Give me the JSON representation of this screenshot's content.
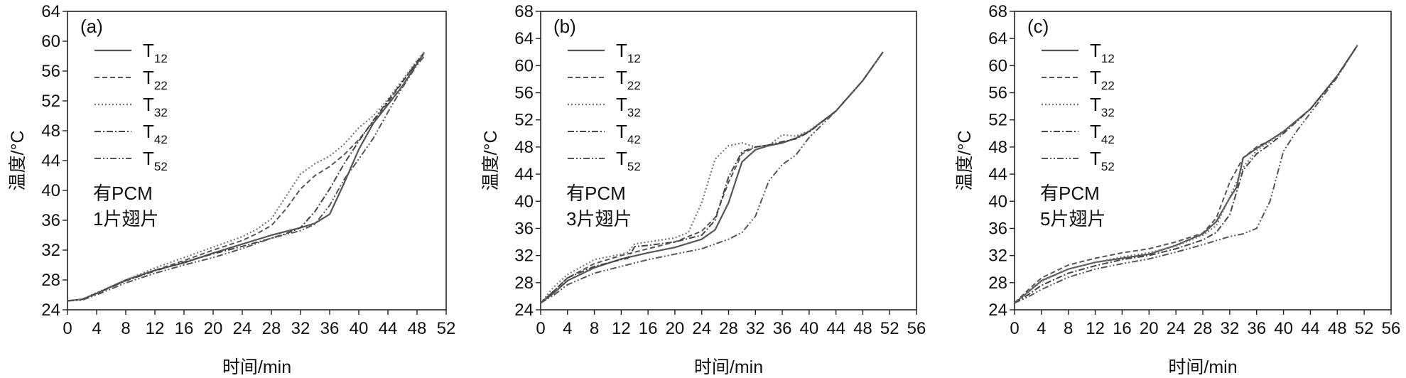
{
  "chart_data": [
    {
      "type": "line",
      "panel": "(a)",
      "xlabel": "时间/min",
      "ylabel": "温度/°C",
      "xlim": [
        0,
        52
      ],
      "ylim": [
        24,
        64
      ],
      "xticks": [
        0,
        4,
        8,
        12,
        16,
        20,
        24,
        28,
        32,
        36,
        40,
        44,
        48,
        52
      ],
      "yticks": [
        24,
        28,
        32,
        36,
        40,
        44,
        48,
        52,
        56,
        60,
        64
      ],
      "annotation": [
        "有PCM",
        "1片翅片"
      ],
      "series": [
        {
          "name": "T12",
          "label": "T",
          "sub": "12",
          "style": "solid",
          "x": [
            0,
            2,
            4,
            8,
            12,
            16,
            20,
            24,
            28,
            32,
            34,
            36,
            38,
            40,
            42,
            44,
            46,
            48,
            49
          ],
          "y": [
            25.2,
            25.4,
            26.2,
            28.0,
            29.3,
            30.3,
            31.6,
            32.8,
            34.0,
            35.0,
            35.6,
            36.8,
            41.0,
            45.5,
            49.0,
            51.5,
            54.0,
            57.0,
            58.5
          ]
        },
        {
          "name": "T22",
          "label": "T",
          "sub": "22",
          "style": "dashed",
          "x": [
            0,
            2,
            4,
            8,
            12,
            16,
            20,
            24,
            26,
            28,
            30,
            32,
            34,
            36,
            38,
            40,
            42,
            44,
            46,
            48,
            49
          ],
          "y": [
            25.2,
            25.4,
            26.2,
            27.9,
            29.3,
            30.6,
            32.0,
            33.3,
            34.2,
            35.3,
            37.5,
            40.2,
            42.0,
            43.2,
            44.8,
            46.8,
            49.2,
            51.8,
            54.5,
            57.3,
            58.5
          ]
        },
        {
          "name": "T32",
          "label": "T",
          "sub": "32",
          "style": "dotted",
          "x": [
            0,
            2,
            4,
            8,
            12,
            16,
            20,
            24,
            26,
            28,
            30,
            32,
            34,
            36,
            38,
            40,
            42,
            44,
            46,
            48,
            49
          ],
          "y": [
            25.2,
            25.4,
            26.3,
            28.0,
            29.6,
            31.0,
            32.4,
            33.8,
            34.8,
            36.2,
            39.2,
            42.2,
            43.6,
            44.6,
            46.2,
            48.4,
            50.0,
            52.2,
            54.8,
            57.4,
            58.6
          ]
        },
        {
          "name": "T42",
          "label": "T",
          "sub": "42",
          "style": "dashdot",
          "x": [
            0,
            2,
            4,
            8,
            12,
            16,
            20,
            24,
            28,
            30,
            32,
            34,
            36,
            38,
            40,
            42,
            44,
            46,
            48,
            49
          ],
          "y": [
            25.2,
            25.4,
            26.2,
            27.9,
            29.2,
            30.4,
            31.5,
            32.5,
            33.6,
            34.2,
            35.0,
            37.2,
            40.2,
            43.6,
            46.6,
            49.4,
            52.0,
            54.6,
            57.2,
            58.3
          ]
        },
        {
          "name": "T52",
          "label": "T",
          "sub": "52",
          "style": "dashdotdot",
          "x": [
            0,
            2,
            4,
            8,
            12,
            16,
            20,
            24,
            28,
            32,
            34,
            36,
            38,
            40,
            42,
            44,
            46,
            48,
            49
          ],
          "y": [
            25.2,
            25.3,
            26.0,
            27.6,
            28.9,
            30.0,
            31.0,
            32.2,
            33.6,
            34.6,
            35.5,
            38.0,
            41.5,
            44.2,
            47.0,
            50.5,
            53.8,
            56.8,
            58.0
          ]
        }
      ]
    },
    {
      "type": "line",
      "panel": "(b)",
      "xlabel": "时间/min",
      "ylabel": "温度/°C",
      "xlim": [
        0,
        56
      ],
      "ylim": [
        24,
        68
      ],
      "xticks": [
        0,
        4,
        8,
        12,
        16,
        20,
        24,
        28,
        32,
        36,
        40,
        44,
        48,
        52,
        56
      ],
      "yticks": [
        24,
        28,
        32,
        36,
        40,
        44,
        48,
        52,
        56,
        60,
        64,
        68
      ],
      "annotation": [
        "有PCM",
        "3片翅片"
      ],
      "series": [
        {
          "name": "T12",
          "label": "T",
          "sub": "12",
          "style": "solid",
          "x": [
            0,
            2,
            4,
            8,
            12,
            16,
            20,
            24,
            26,
            28,
            30,
            32,
            34,
            36,
            38,
            40,
            44,
            48,
            51
          ],
          "y": [
            25.0,
            26.5,
            28.3,
            30.2,
            31.5,
            32.4,
            33.2,
            34.4,
            35.8,
            39.8,
            45.8,
            47.6,
            48.2,
            48.6,
            49.3,
            50.3,
            53.3,
            57.8,
            62.0
          ]
        },
        {
          "name": "T22",
          "label": "T",
          "sub": "22",
          "style": "dashed",
          "x": [
            0,
            2,
            4,
            8,
            12,
            16,
            20,
            24,
            26,
            28,
            30,
            32,
            34,
            36,
            38,
            40,
            44,
            48,
            51
          ],
          "y": [
            25.0,
            26.8,
            28.7,
            30.8,
            32.0,
            33.0,
            34.0,
            35.6,
            37.6,
            42.8,
            47.0,
            48.0,
            48.3,
            48.6,
            49.3,
            50.3,
            53.3,
            57.8,
            62.0
          ]
        },
        {
          "name": "T32",
          "label": "T",
          "sub": "32",
          "style": "dotted",
          "x": [
            0,
            2,
            4,
            8,
            12,
            13,
            14,
            16,
            20,
            22,
            24,
            26,
            28,
            30,
            32,
            34,
            36,
            38,
            40,
            44,
            48,
            51
          ],
          "y": [
            25.0,
            27.4,
            29.2,
            31.4,
            32.2,
            32.5,
            33.7,
            34.0,
            34.6,
            35.4,
            39.8,
            46.2,
            48.2,
            48.6,
            48.0,
            48.2,
            49.8,
            49.6,
            50.4,
            53.3,
            57.8,
            62.0
          ]
        },
        {
          "name": "T42",
          "label": "T",
          "sub": "42",
          "style": "dashdot",
          "x": [
            0,
            2,
            4,
            8,
            12,
            13,
            14,
            16,
            20,
            24,
            26,
            28,
            30,
            32,
            34,
            36,
            38,
            40,
            44,
            48,
            51
          ],
          "y": [
            25.0,
            26.8,
            28.7,
            30.4,
            31.4,
            31.6,
            33.3,
            33.5,
            34.0,
            35.0,
            37.2,
            43.6,
            47.3,
            48.0,
            48.3,
            48.8,
            49.2,
            50.2,
            53.3,
            57.8,
            62.0
          ]
        },
        {
          "name": "T52",
          "label": "T",
          "sub": "52",
          "style": "dashdotdot",
          "x": [
            0,
            2,
            4,
            8,
            12,
            16,
            20,
            24,
            28,
            30,
            32,
            34,
            36,
            38,
            40,
            44,
            48,
            51
          ],
          "y": [
            25.0,
            26.2,
            27.7,
            29.4,
            30.4,
            31.4,
            32.2,
            33.0,
            34.4,
            35.4,
            37.8,
            43.0,
            45.4,
            46.8,
            49.4,
            53.3,
            57.8,
            62.0
          ]
        }
      ]
    },
    {
      "type": "line",
      "panel": "(c)",
      "xlabel": "时间/min",
      "ylabel": "温度/°C",
      "xlim": [
        0,
        56
      ],
      "ylim": [
        24,
        68
      ],
      "xticks": [
        0,
        4,
        8,
        12,
        16,
        20,
        24,
        28,
        32,
        36,
        40,
        44,
        48,
        52,
        56
      ],
      "yticks": [
        24,
        28,
        32,
        36,
        40,
        44,
        48,
        52,
        56,
        60,
        64,
        68
      ],
      "annotation": [
        "有PCM",
        "5片翅片"
      ],
      "series": [
        {
          "name": "T12",
          "label": "T",
          "sub": "12",
          "style": "solid",
          "x": [
            0,
            2,
            4,
            8,
            12,
            16,
            20,
            24,
            28,
            30,
            32,
            33,
            34,
            36,
            38,
            40,
            44,
            48,
            51
          ],
          "y": [
            25.0,
            26.6,
            28.3,
            30.0,
            31.0,
            31.6,
            32.2,
            33.5,
            35.2,
            37.0,
            40.5,
            42.0,
            46.4,
            47.8,
            49.0,
            50.3,
            53.6,
            58.5,
            63.0
          ]
        },
        {
          "name": "T22",
          "label": "T",
          "sub": "22",
          "style": "dashed",
          "x": [
            0,
            2,
            4,
            8,
            12,
            16,
            20,
            24,
            28,
            30,
            32,
            34,
            36,
            38,
            40,
            44,
            48,
            51
          ],
          "y": [
            25.0,
            26.9,
            28.7,
            30.6,
            31.6,
            32.4,
            33.0,
            34.0,
            35.3,
            37.5,
            42.8,
            46.4,
            48.0,
            49.0,
            50.3,
            53.6,
            58.5,
            63.0
          ]
        },
        {
          "name": "T32",
          "label": "T",
          "sub": "32",
          "style": "dotted",
          "x": [
            0,
            2,
            4,
            8,
            12,
            16,
            20,
            24,
            28,
            30,
            32,
            34,
            36,
            38,
            40,
            44,
            48,
            51
          ],
          "y": [
            25.0,
            26.6,
            28.2,
            30.0,
            31.0,
            31.8,
            32.4,
            33.4,
            35.0,
            36.4,
            40.6,
            45.0,
            47.5,
            48.8,
            50.2,
            53.6,
            58.5,
            63.0
          ]
        },
        {
          "name": "T42",
          "label": "T",
          "sub": "42",
          "style": "dashdot",
          "x": [
            0,
            2,
            4,
            8,
            12,
            16,
            20,
            24,
            28,
            30,
            32,
            34,
            36,
            38,
            40,
            44,
            48,
            51
          ],
          "y": [
            25.0,
            26.2,
            27.6,
            29.4,
            30.5,
            31.4,
            32.0,
            33.0,
            34.3,
            35.4,
            38.0,
            44.6,
            47.0,
            48.4,
            50.0,
            53.6,
            58.5,
            63.0
          ]
        },
        {
          "name": "T52",
          "label": "T",
          "sub": "52",
          "style": "dashdotdot",
          "x": [
            0,
            2,
            4,
            8,
            12,
            16,
            20,
            24,
            28,
            30,
            32,
            34,
            36,
            38,
            40,
            42,
            44,
            48,
            51
          ],
          "y": [
            25.0,
            25.9,
            27.0,
            28.8,
            30.0,
            30.8,
            31.5,
            32.5,
            33.6,
            34.2,
            34.8,
            35.2,
            36.0,
            40.0,
            47.4,
            50.4,
            53.0,
            58.3,
            63.0
          ]
        }
      ]
    }
  ]
}
